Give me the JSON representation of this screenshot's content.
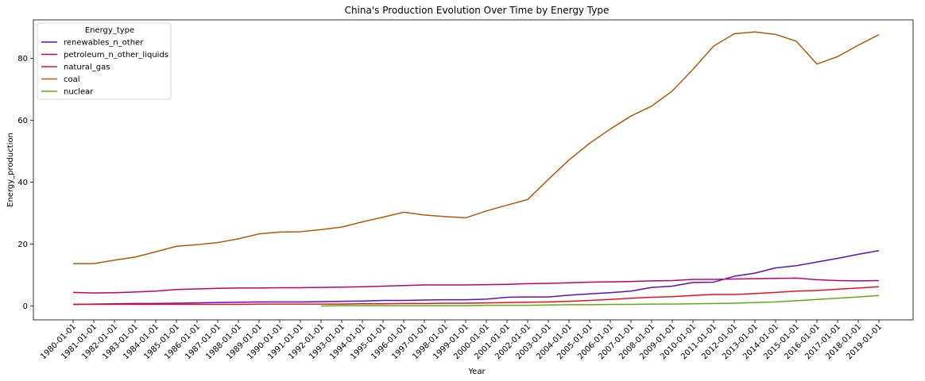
{
  "chart_data": {
    "type": "line",
    "title": "China's Production Evolution Over Time by Energy Type",
    "xlabel": "Year",
    "ylabel": "Energy_production",
    "ylim": [
      -4.5,
      92.5
    ],
    "yticks": [
      0,
      20,
      40,
      60,
      80
    ],
    "grid": false,
    "legend_title": "Energy_type",
    "legend_position": "top-left",
    "x": [
      "1980-01-01",
      "1981-01-01",
      "1982-01-01",
      "1983-01-01",
      "1984-01-01",
      "1985-01-01",
      "1986-01-01",
      "1987-01-01",
      "1988-01-01",
      "1989-01-01",
      "1990-01-01",
      "1991-01-01",
      "1992-01-01",
      "1993-01-01",
      "1994-01-01",
      "1995-01-01",
      "1996-01-01",
      "1997-01-01",
      "1998-01-01",
      "1999-01-01",
      "2000-01-01",
      "2001-01-01",
      "2002-01-01",
      "2003-01-01",
      "2004-01-01",
      "2005-01-01",
      "2006-01-01",
      "2007-01-01",
      "2008-01-01",
      "2009-01-01",
      "2010-01-01",
      "2011-01-01",
      "2012-01-01",
      "2013-01-01",
      "2014-01-01",
      "2015-01-01",
      "2016-01-01",
      "2017-01-01",
      "2018-01-01",
      "2019-01-01"
    ],
    "series": [
      {
        "name": "renewables_n_other",
        "color": "#5b0fbf",
        "values": [
          0.5,
          0.6,
          0.7,
          0.8,
          0.8,
          0.9,
          1.0,
          1.1,
          1.2,
          1.3,
          1.3,
          1.3,
          1.4,
          1.5,
          1.6,
          1.8,
          1.8,
          1.9,
          2.0,
          2.0,
          2.2,
          2.8,
          2.9,
          2.9,
          3.5,
          3.9,
          4.3,
          4.8,
          6.0,
          6.4,
          7.6,
          7.7,
          9.6,
          10.6,
          12.3,
          13.0,
          14.2,
          15.4,
          16.7,
          17.9
        ]
      },
      {
        "name": "petroleum_n_other_liquids",
        "color": "#c2006a",
        "values": [
          4.4,
          4.2,
          4.3,
          4.5,
          4.8,
          5.3,
          5.5,
          5.7,
          5.8,
          5.8,
          5.9,
          5.9,
          6.0,
          6.1,
          6.2,
          6.4,
          6.6,
          6.8,
          6.8,
          6.8,
          6.9,
          7.0,
          7.2,
          7.3,
          7.5,
          7.7,
          7.8,
          7.9,
          8.1,
          8.2,
          8.6,
          8.6,
          8.7,
          8.8,
          8.9,
          9.0,
          8.5,
          8.2,
          8.1,
          8.2
        ]
      },
      {
        "name": "natural_gas",
        "color": "#e8101c",
        "values": [
          0.5,
          0.5,
          0.5,
          0.5,
          0.5,
          0.5,
          0.5,
          0.5,
          0.5,
          0.6,
          0.6,
          0.6,
          0.6,
          0.6,
          0.7,
          0.7,
          0.8,
          0.8,
          0.9,
          0.9,
          1.0,
          1.1,
          1.2,
          1.3,
          1.5,
          1.8,
          2.1,
          2.5,
          2.8,
          3.0,
          3.4,
          3.7,
          3.7,
          4.0,
          4.4,
          4.8,
          5.0,
          5.4,
          5.8,
          6.2
        ]
      },
      {
        "name": "coal",
        "color": "#b05a08",
        "values": [
          13.7,
          13.7,
          14.8,
          15.8,
          17.5,
          19.3,
          19.8,
          20.5,
          21.7,
          23.3,
          23.9,
          24.0,
          24.7,
          25.5,
          27.2,
          28.7,
          30.3,
          29.4,
          28.9,
          28.5,
          30.7,
          32.6,
          34.4,
          40.9,
          47.2,
          52.6,
          57.2,
          61.4,
          64.6,
          69.5,
          76.5,
          84.0,
          88.0,
          88.6,
          87.8,
          85.6,
          78.2,
          80.6,
          84.3,
          87.7
        ]
      },
      {
        "name": "nuclear",
        "color": "#5aae10",
        "values": [
          null,
          null,
          null,
          null,
          null,
          null,
          null,
          null,
          null,
          null,
          null,
          null,
          0.0,
          0.1,
          0.1,
          0.1,
          0.1,
          0.1,
          0.1,
          0.1,
          0.2,
          0.2,
          0.2,
          0.3,
          0.4,
          0.4,
          0.5,
          0.5,
          0.6,
          0.6,
          0.7,
          0.8,
          0.9,
          1.1,
          1.3,
          1.7,
          2.1,
          2.5,
          2.9,
          3.4
        ]
      }
    ]
  }
}
